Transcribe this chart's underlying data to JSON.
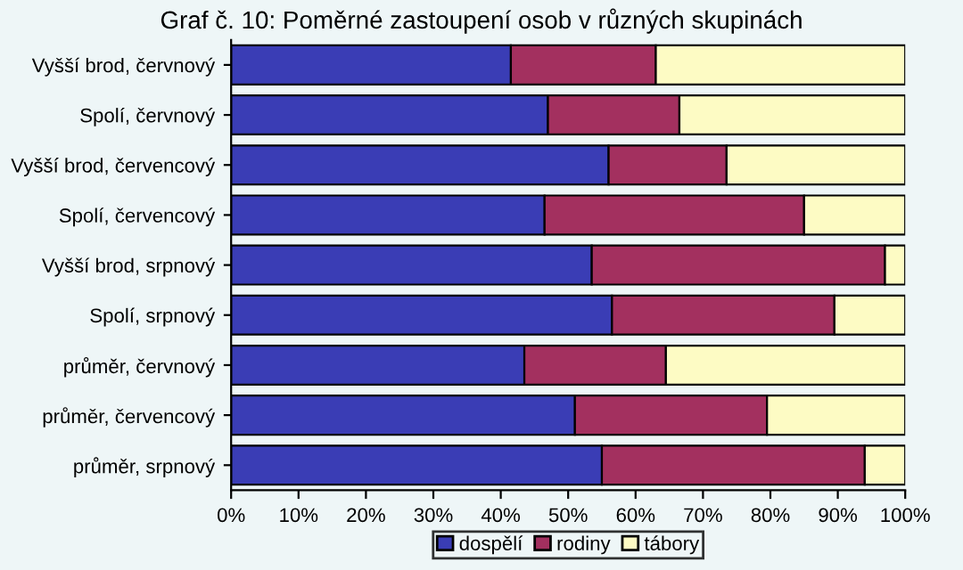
{
  "chart_data": {
    "type": "bar",
    "orientation": "horizontal",
    "stacked": true,
    "title": "Graf č. 10: Poměrné zastoupení osob v různých skupinách",
    "categories": [
      "Vyšší brod, červnový",
      "Spolí, červnový",
      "Vyšší brod, červencový",
      "Spolí, červencový",
      "Vyšší brod, srpnový",
      "Spolí, srpnový",
      "průměr, červnový",
      "průměr, červencový",
      "průměr, srpnový"
    ],
    "series": [
      {
        "name": "dospělí",
        "color": "#3a3db5",
        "values": [
          41.5,
          47,
          56,
          46.5,
          53.5,
          56.5,
          43.5,
          51,
          55
        ]
      },
      {
        "name": "rodiny",
        "color": "#a3305f",
        "values": [
          21.5,
          19.5,
          17.5,
          38.5,
          43.5,
          33,
          21,
          28.5,
          39
        ]
      },
      {
        "name": "tábory",
        "color": "#fdfbc4",
        "values": [
          37,
          33.5,
          26.5,
          15,
          3,
          10.5,
          35.5,
          20.5,
          6
        ]
      }
    ],
    "xlim": [
      0,
      100
    ],
    "xticks": [
      {
        "value": 0,
        "label": "0%"
      },
      {
        "value": 10,
        "label": "10%"
      },
      {
        "value": 20,
        "label": "20%"
      },
      {
        "value": 30,
        "label": "30%"
      },
      {
        "value": 40,
        "label": "40%"
      },
      {
        "value": 50,
        "label": "50%"
      },
      {
        "value": 60,
        "label": "60%"
      },
      {
        "value": 70,
        "label": "70%"
      },
      {
        "value": 80,
        "label": "80%"
      },
      {
        "value": 90,
        "label": "90%"
      },
      {
        "value": 100,
        "label": "100%"
      }
    ],
    "grid": false,
    "legend": "bottom"
  }
}
